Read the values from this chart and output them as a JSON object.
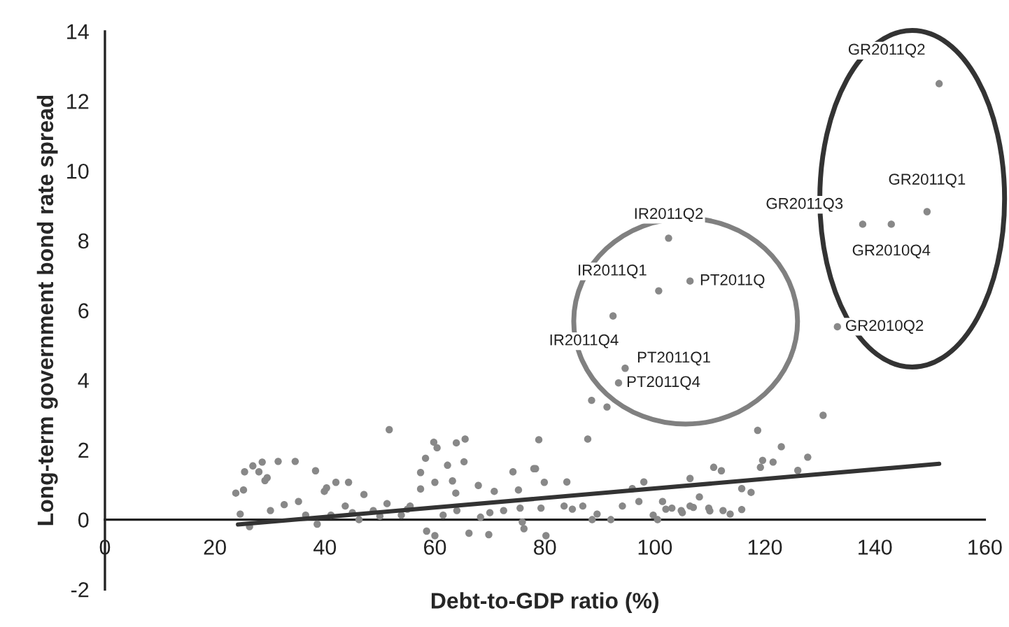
{
  "chart_data": {
    "type": "scatter",
    "xlabel": "Debt-to-GDP ratio (%)",
    "ylabel": "Long-term government bond rate spread",
    "xlim": [
      0,
      160
    ],
    "xticks": [
      0,
      20,
      40,
      60,
      80,
      100,
      120,
      140,
      160
    ],
    "ylim": [
      -2,
      14
    ],
    "yticks": [
      -2,
      0,
      2,
      4,
      6,
      8,
      10,
      12,
      14
    ],
    "grid": false,
    "legend": false,
    "series": [
      {
        "marker": "circle",
        "color": "#888888",
        "x": [
          151.7,
          149.5,
          143,
          137.8,
          133.2,
          102.5,
          100.7,
          106.4,
          92.4,
          94.6,
          93.4,
          51.7,
          59.8,
          60.4,
          63.9,
          65.5,
          65.3,
          58.3,
          57.4,
          62.3,
          25.4,
          26.9,
          28.6,
          31.5,
          34.6,
          38.3,
          29.1,
          23.8,
          25.2,
          29.5,
          28,
          40.3,
          42,
          44.3,
          39.9,
          47.1,
          57.4,
          60,
          63.2,
          63.8,
          67.9,
          70.8,
          74.2,
          78,
          78.9,
          75.2,
          24.6,
          26.3,
          30.1,
          32.6,
          35.2,
          36.5,
          38.6,
          41.1,
          43.7,
          46.2,
          48.8,
          51.3,
          53.9,
          55.5,
          58.5,
          60,
          61.5,
          64,
          66.2,
          68.3,
          69.8,
          72.5,
          75.9,
          76.2,
          130.6,
          118.7,
          123,
          127.8,
          126,
          119.6,
          121.5,
          119.2,
          87.8,
          78.3,
          79.9,
          84,
          88.5,
          91.3,
          110.7,
          112.1,
          106.4,
          98,
          95.9,
          115.8,
          117.5,
          75.5,
          79.3,
          83.5,
          86.9,
          89.5,
          92,
          94.1,
          97.1,
          99.7,
          101.4,
          103.1,
          104.8,
          106.4,
          108.1,
          109.8,
          112.4,
          115.8,
          113.7,
          80.2,
          88.6,
          100.5,
          45,
          50,
          55,
          70,
          85,
          102,
          105,
          107,
          110
        ],
        "values": [
          12.5,
          8.83,
          8.47,
          8.47,
          5.53,
          8.07,
          6.56,
          6.84,
          5.84,
          4.34,
          3.92,
          2.58,
          2.22,
          2.06,
          2.2,
          2.31,
          1.66,
          1.76,
          1.35,
          1.56,
          1.37,
          1.54,
          1.65,
          1.67,
          1.67,
          1.4,
          1.12,
          0.76,
          0.85,
          1.2,
          1.37,
          0.91,
          1.07,
          1.07,
          0.81,
          0.72,
          0.88,
          1.07,
          1.11,
          0.76,
          0.98,
          0.81,
          1.37,
          1.46,
          2.29,
          0.85,
          0.16,
          -0.2,
          0.26,
          0.43,
          0.52,
          0.13,
          -0.13,
          0.13,
          0.39,
          0,
          0.26,
          0.46,
          0.13,
          0.39,
          -0.33,
          -0.46,
          0.13,
          0.26,
          -0.39,
          0.07,
          -0.43,
          0.26,
          -0.07,
          -0.26,
          2.99,
          2.56,
          2.09,
          1.79,
          1.41,
          1.7,
          1.65,
          1.5,
          2.31,
          1.46,
          1.07,
          1.08,
          3.42,
          3.23,
          1.5,
          1.4,
          1.18,
          1.08,
          0.89,
          0.89,
          0.78,
          0.33,
          0.33,
          0.39,
          0.39,
          0.16,
          0,
          0.39,
          0.52,
          0.13,
          0.52,
          0.33,
          0.26,
          0.39,
          0.65,
          0.33,
          0.26,
          0.29,
          0.16,
          -0.46,
          0,
          0,
          0.2,
          0.1,
          0.3,
          0.2,
          0.3,
          0.3,
          0.2,
          0.35,
          0.25
        ]
      },
      {
        "type": "line",
        "color": "#333333",
        "x": [
          24.2,
          151.7
        ],
        "values": [
          -0.14,
          1.6
        ]
      }
    ],
    "annotations": [
      {
        "text": "GR2011Q2",
        "x": 151.7,
        "y": 12.5
      },
      {
        "text": "GR2011Q1",
        "x": 149.5,
        "y": 8.83
      },
      {
        "text": "GR2010Q4",
        "x": 143,
        "y": 8.47
      },
      {
        "text": "GR2011Q3",
        "x": 137.8,
        "y": 8.47
      },
      {
        "text": "GR2010Q2",
        "x": 133.2,
        "y": 5.53
      },
      {
        "text": "IR2011Q2",
        "x": 102.5,
        "y": 8.07
      },
      {
        "text": "IR2011Q1",
        "x": 100.7,
        "y": 6.56
      },
      {
        "text": "PT2011Q",
        "x": 106.4,
        "y": 6.84
      },
      {
        "text": "IR2011Q4",
        "x": 92.4,
        "y": 5.84
      },
      {
        "text": "PT2011Q1",
        "x": 94.6,
        "y": 4.34
      },
      {
        "text": "PT2011Q4",
        "x": 93.4,
        "y": 3.92
      }
    ]
  }
}
